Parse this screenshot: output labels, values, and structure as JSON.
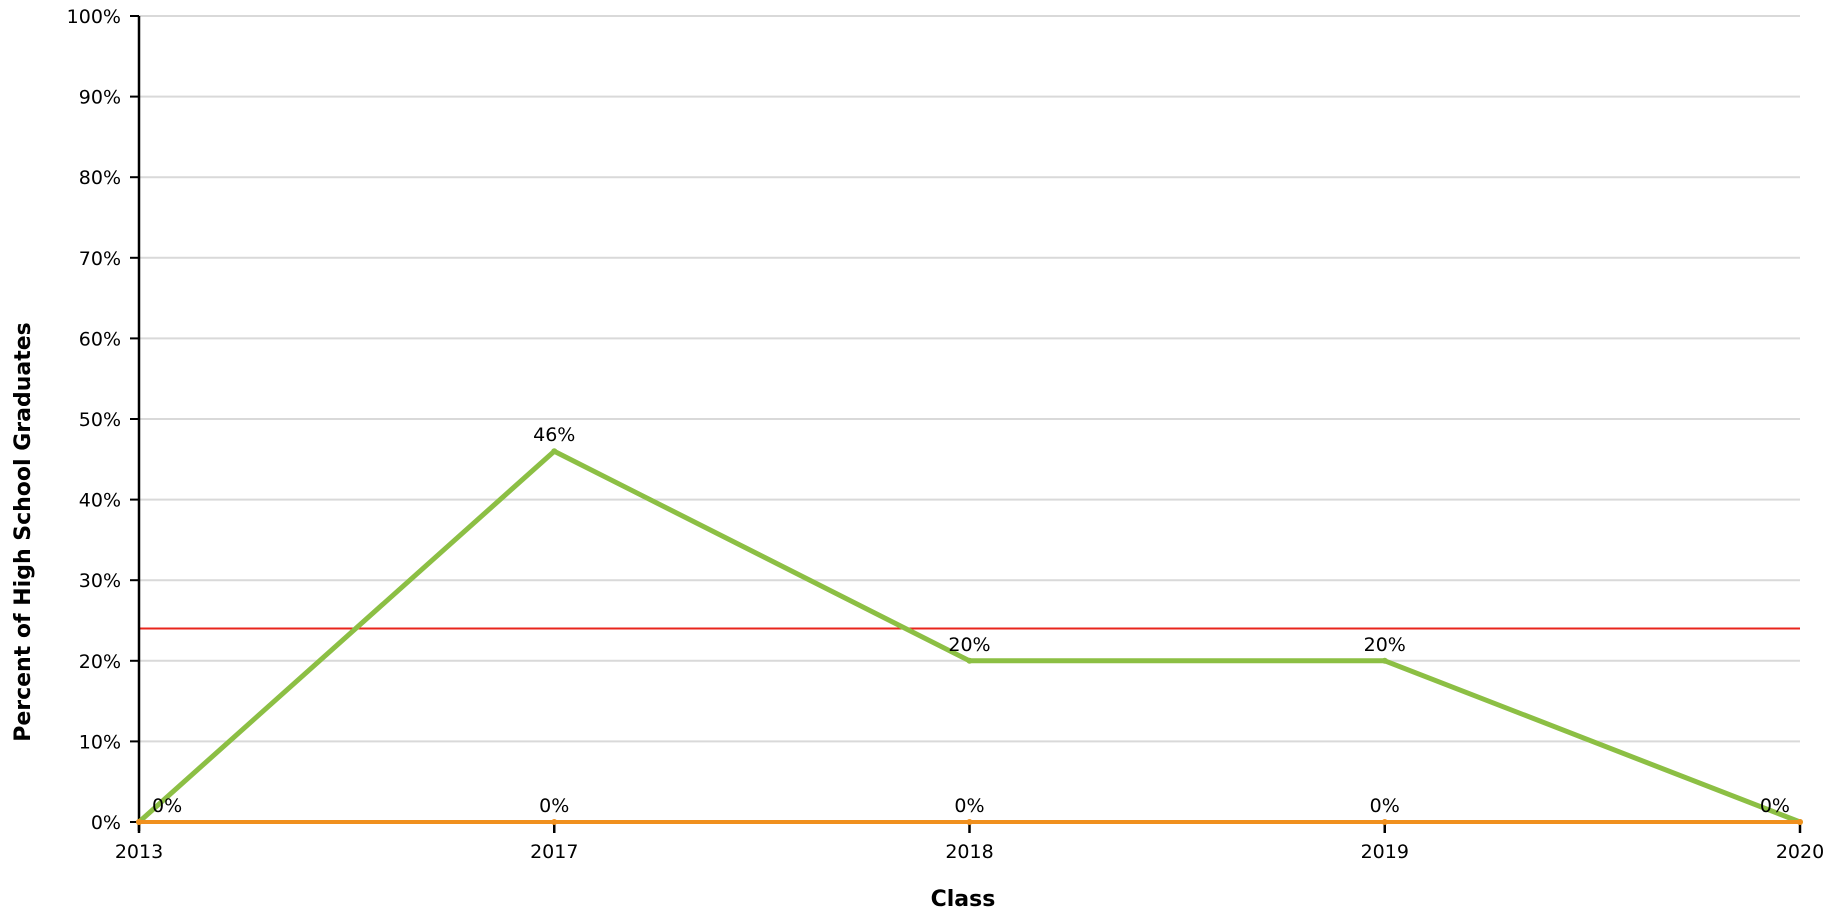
{
  "chart_data": {
    "type": "line",
    "title": "",
    "xlabel": "Class",
    "ylabel": "Percent of High School Graduates",
    "categories": [
      "2013",
      "2017",
      "2018",
      "2019",
      "2020"
    ],
    "y_ticks": [
      "0%",
      "10%",
      "20%",
      "30%",
      "40%",
      "50%",
      "60%",
      "70%",
      "80%",
      "90%",
      "100%"
    ],
    "ylim": [
      0,
      100
    ],
    "grid": true,
    "series": [
      {
        "color": "#8cbf44",
        "values": [
          0,
          46,
          20,
          20,
          0
        ],
        "labels": [
          "",
          "46%",
          "20%",
          "20%",
          ""
        ]
      },
      {
        "color": "#f0901e",
        "values": [
          0,
          0,
          0,
          0,
          0
        ],
        "labels": [
          "0%",
          "0%",
          "0%",
          "0%",
          "0%"
        ]
      }
    ],
    "reference_line": {
      "value": 24,
      "color": "#e8251c"
    },
    "colors": {
      "grid": "#d9d9d9",
      "axis": "#000000"
    }
  }
}
